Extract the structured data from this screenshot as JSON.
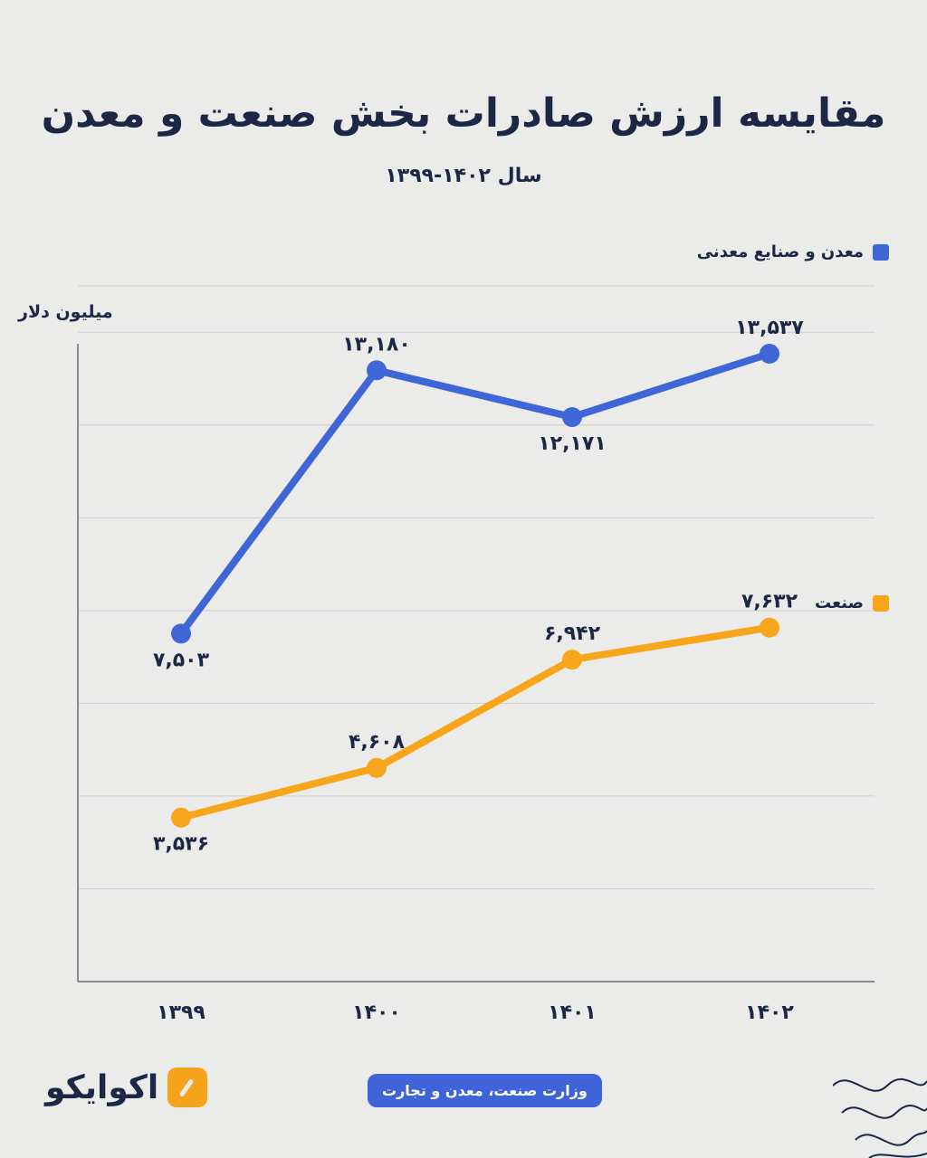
{
  "header": {
    "title": "مقایسه ارزش صادرات بخش صنعت و معدن",
    "subtitle": "سال ۱۴۰۲-۱۳۹۹"
  },
  "footer": {
    "logo_text": "اکوایکو",
    "source": "وزارت صنعت، معدن و تجارت"
  },
  "colors": {
    "series_blue": "#3f66d6",
    "series_orange": "#f7a61c",
    "grid": "#cfcfcf",
    "axis": "#8a8a8a",
    "text": "#1c2745"
  },
  "chart_data": {
    "type": "line",
    "ylabel": "میلیون دلار",
    "categories": [
      "۱۳۹۹",
      "۱۴۰۰",
      "۱۴۰۱",
      "۱۴۰۲"
    ],
    "ylim": [
      0,
      15000
    ],
    "grid": true,
    "legend_position": "right",
    "series": [
      {
        "name": "معدن و صنایع معدنی",
        "color": "#3f66d6",
        "values": [
          7503,
          13180,
          12171,
          13537
        ],
        "labels": [
          "۷,۵۰۳",
          "۱۳,۱۸۰",
          "۱۲,۱۷۱",
          "۱۳,۵۳۷"
        ]
      },
      {
        "name": "صنعت",
        "color": "#f7a61c",
        "values": [
          3536,
          4608,
          6942,
          7632
        ],
        "labels": [
          "۳,۵۳۶",
          "۴,۶۰۸",
          "۶,۹۴۲",
          "۷,۶۳۲"
        ]
      }
    ]
  }
}
